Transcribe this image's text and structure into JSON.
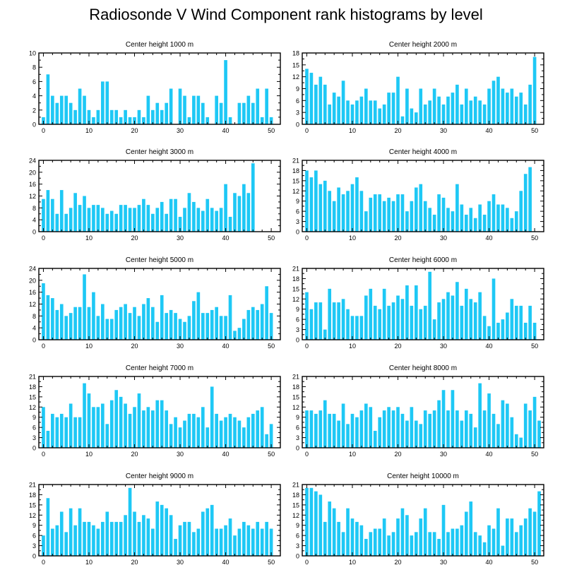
{
  "title": "Radiosonde V Wind Component rank histograms by level",
  "colors": {
    "bar": "#1ec8f5",
    "axis": "#000000",
    "background": "#ffffff"
  },
  "chart_data": [
    {
      "type": "bar",
      "title": "Center height 1000 m",
      "x_ticks": [
        0,
        10,
        20,
        30,
        40,
        50
      ],
      "xlim": [
        -1,
        52
      ],
      "ylim": [
        0,
        10
      ],
      "y_ticks": [
        0,
        2,
        4,
        6,
        8,
        10
      ],
      "values": [
        1,
        7,
        4,
        3,
        4,
        4,
        3,
        2,
        5,
        4,
        2,
        1,
        2,
        6,
        6,
        2,
        2,
        1,
        2,
        1,
        1,
        2,
        1,
        4,
        2,
        3,
        2,
        3,
        5,
        0,
        5,
        4,
        1,
        4,
        4,
        3,
        1,
        0,
        4,
        3,
        9,
        1,
        0,
        3,
        3,
        4,
        3,
        5,
        1,
        5,
        1
      ]
    },
    {
      "type": "bar",
      "title": "Center height 2000 m",
      "x_ticks": [
        0,
        10,
        20,
        30,
        40,
        50
      ],
      "xlim": [
        -1,
        52
      ],
      "ylim": [
        0,
        18
      ],
      "y_ticks": [
        0,
        3,
        6,
        9,
        12,
        15,
        18
      ],
      "values": [
        14,
        13,
        10,
        12,
        10,
        5,
        8,
        7,
        11,
        6,
        5,
        6,
        7,
        9,
        6,
        6,
        4,
        5,
        8,
        8,
        12,
        2,
        9,
        4,
        3,
        9,
        5,
        6,
        9,
        7,
        5,
        7,
        8,
        10,
        5,
        9,
        6,
        7,
        6,
        5,
        9,
        11,
        12,
        9,
        8,
        9,
        7,
        8,
        5,
        10,
        17
      ]
    },
    {
      "type": "bar",
      "title": "Center height 3000 m",
      "x_ticks": [
        0,
        10,
        20,
        30,
        40,
        50
      ],
      "xlim": [
        -1,
        52
      ],
      "ylim": [
        0,
        24
      ],
      "y_ticks": [
        0,
        4,
        8,
        12,
        16,
        20,
        24
      ],
      "values": [
        11,
        14,
        11,
        6,
        14,
        6,
        8,
        13,
        9,
        12,
        8,
        9,
        9,
        8,
        6,
        7,
        6,
        9,
        9,
        8,
        8,
        9,
        11,
        9,
        6,
        8,
        10,
        6,
        11,
        11,
        5,
        8,
        13,
        10,
        8,
        7,
        11,
        8,
        7,
        8,
        16,
        5,
        13,
        12,
        16,
        13,
        23
      ]
    },
    {
      "type": "bar",
      "title": "Center height 4000 m",
      "x_ticks": [
        0,
        10,
        20,
        30,
        40,
        50
      ],
      "xlim": [
        -1,
        52
      ],
      "ylim": [
        0,
        21
      ],
      "y_ticks": [
        0,
        3,
        6,
        9,
        12,
        15,
        18,
        21
      ],
      "values": [
        18,
        16,
        18,
        14,
        15,
        12,
        9,
        13,
        11,
        12,
        14,
        16,
        12,
        6,
        10,
        11,
        11,
        9,
        10,
        9,
        11,
        11,
        6,
        9,
        13,
        14,
        9,
        7,
        5,
        11,
        10,
        7,
        6,
        14,
        8,
        5,
        7,
        4,
        8,
        5,
        9,
        11,
        8,
        8,
        7,
        4,
        6,
        12,
        17,
        19
      ]
    },
    {
      "type": "bar",
      "title": "Center height 5000 m",
      "x_ticks": [
        0,
        10,
        20,
        30,
        40,
        50
      ],
      "xlim": [
        -1,
        52
      ],
      "ylim": [
        0,
        24
      ],
      "y_ticks": [
        0,
        4,
        8,
        12,
        16,
        20,
        24
      ],
      "values": [
        19,
        15,
        14,
        10,
        12,
        8,
        9,
        11,
        11,
        22,
        11,
        16,
        8,
        12,
        7,
        7,
        10,
        11,
        12,
        9,
        11,
        8,
        12,
        14,
        11,
        6,
        15,
        9,
        10,
        9,
        7,
        6,
        8,
        13,
        16,
        9,
        9,
        10,
        11,
        8,
        8,
        15,
        3,
        4,
        7,
        10,
        11,
        10,
        12,
        18,
        9
      ]
    },
    {
      "type": "bar",
      "title": "Center height 6000 m",
      "x_ticks": [
        0,
        10,
        20,
        30,
        40,
        50
      ],
      "xlim": [
        -1,
        52
      ],
      "ylim": [
        0,
        21
      ],
      "y_ticks": [
        0,
        3,
        6,
        9,
        12,
        15,
        18,
        21
      ],
      "values": [
        14,
        9,
        11,
        11,
        3,
        15,
        11,
        11,
        12,
        9,
        7,
        7,
        7,
        13,
        15,
        10,
        9,
        15,
        10,
        11,
        13,
        12,
        16,
        10,
        16,
        9,
        10,
        20,
        6,
        11,
        12,
        14,
        13,
        17,
        10,
        15,
        12,
        11,
        14,
        7,
        4,
        18,
        5,
        6,
        8,
        12,
        10,
        10,
        5,
        10,
        5
      ]
    },
    {
      "type": "bar",
      "title": "Center height 7000 m",
      "x_ticks": [
        0,
        10,
        20,
        30,
        40,
        50
      ],
      "xlim": [
        -1,
        52
      ],
      "ylim": [
        0,
        21
      ],
      "y_ticks": [
        0,
        3,
        6,
        9,
        12,
        15,
        18,
        21
      ],
      "values": [
        12,
        5,
        10,
        9,
        10,
        9,
        13,
        9,
        9,
        19,
        16,
        12,
        12,
        13,
        7,
        14,
        17,
        15,
        13,
        10,
        12,
        16,
        11,
        12,
        11,
        14,
        14,
        11,
        7,
        9,
        6,
        8,
        10,
        10,
        9,
        12,
        6,
        18,
        10,
        8,
        9,
        10,
        9,
        8,
        6,
        9,
        10,
        11,
        12,
        4,
        7
      ]
    },
    {
      "type": "bar",
      "title": "Center height 8000 m",
      "x_ticks": [
        0,
        10,
        20,
        30,
        40,
        50
      ],
      "xlim": [
        -1,
        52
      ],
      "ylim": [
        0,
        21
      ],
      "y_ticks": [
        0,
        3,
        6,
        9,
        12,
        15,
        18,
        21
      ],
      "values": [
        11,
        11,
        10,
        11,
        14,
        10,
        10,
        8,
        13,
        7,
        10,
        9,
        11,
        13,
        12,
        5,
        9,
        11,
        12,
        11,
        12,
        10,
        8,
        12,
        8,
        7,
        11,
        10,
        11,
        14,
        17,
        11,
        17,
        11,
        8,
        11,
        10,
        6,
        19,
        11,
        16,
        10,
        7,
        14,
        13,
        9,
        4,
        3,
        13,
        11,
        15,
        8
      ]
    },
    {
      "type": "bar",
      "title": "Center height 9000 m",
      "x_ticks": [
        0,
        10,
        20,
        30,
        40,
        50
      ],
      "xlim": [
        -1,
        52
      ],
      "ylim": [
        0,
        21
      ],
      "y_ticks": [
        0,
        3,
        6,
        9,
        12,
        15,
        18,
        21
      ],
      "values": [
        6,
        17,
        8,
        9,
        13,
        7,
        14,
        9,
        14,
        10,
        10,
        9,
        8,
        10,
        13,
        10,
        10,
        10,
        12,
        20,
        13,
        10,
        12,
        11,
        8,
        16,
        15,
        14,
        12,
        5,
        9,
        10,
        10,
        7,
        8,
        13,
        14,
        15,
        8,
        8,
        9,
        11,
        6,
        8,
        10,
        9,
        8,
        10,
        8,
        10,
        8
      ]
    },
    {
      "type": "bar",
      "title": "Center height 10000 m",
      "x_ticks": [
        0,
        10,
        20,
        30,
        40,
        50
      ],
      "xlim": [
        -1,
        52
      ],
      "ylim": [
        0,
        21
      ],
      "y_ticks": [
        0,
        3,
        6,
        9,
        12,
        15,
        18,
        21
      ],
      "values": [
        20,
        20,
        19,
        18,
        10,
        16,
        14,
        10,
        7,
        14,
        11,
        10,
        9,
        5,
        7,
        8,
        8,
        11,
        6,
        7,
        11,
        14,
        12,
        6,
        7,
        11,
        14,
        7,
        7,
        5,
        15,
        7,
        8,
        8,
        9,
        13,
        16,
        7,
        6,
        4,
        9,
        8,
        14,
        3,
        11,
        11,
        7,
        9,
        11,
        14,
        13,
        19
      ]
    }
  ]
}
